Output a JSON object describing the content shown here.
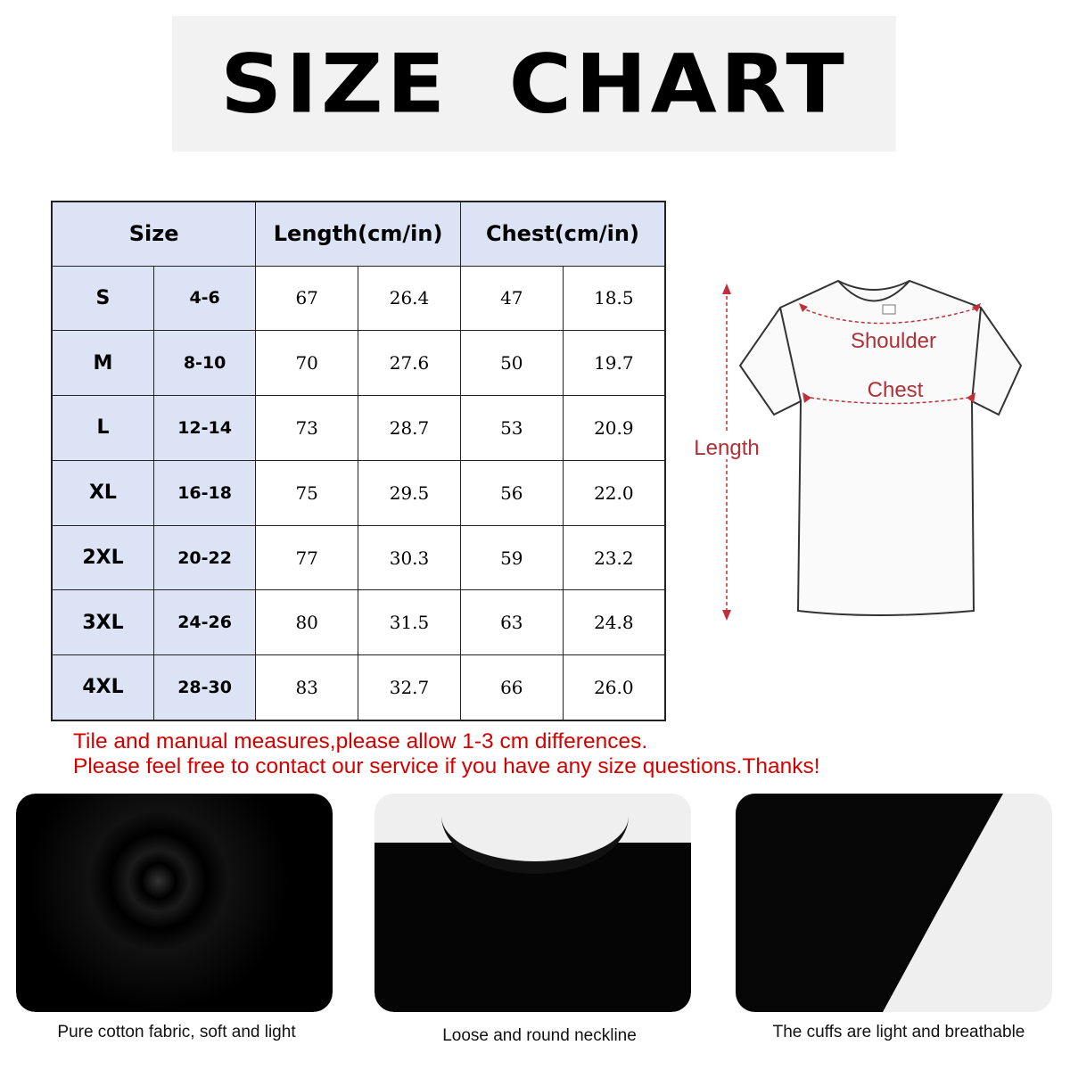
{
  "title": "SIZE CHART",
  "table": {
    "headers": [
      "Size",
      "Length(cm/in)",
      "Chest(cm/in)"
    ],
    "rows": [
      [
        "S",
        "4-6",
        "67",
        "26.4",
        "47",
        "18.5"
      ],
      [
        "M",
        "8-10",
        "70",
        "27.6",
        "50",
        "19.7"
      ],
      [
        "L",
        "12-14",
        "73",
        "28.7",
        "53",
        "20.9"
      ],
      [
        "XL",
        "16-18",
        "75",
        "29.5",
        "56",
        "22.0"
      ],
      [
        "2XL",
        "20-22",
        "77",
        "30.3",
        "59",
        "23.2"
      ],
      [
        "3XL",
        "24-26",
        "80",
        "31.5",
        "63",
        "24.8"
      ],
      [
        "4XL",
        "28-30",
        "83",
        "32.7",
        "66",
        "26.0"
      ]
    ]
  },
  "diagram": {
    "shoulder": "Shoulder",
    "chest": "Chest",
    "length": "Length"
  },
  "notes": [
    "Tile and manual measures,please allow 1-3 cm differences.",
    "Please feel free to contact our service if you have any size questions.Thanks!"
  ],
  "photos": [
    {
      "caption": "Pure cotton fabric, soft and light"
    },
    {
      "caption": "Loose and round neckline"
    },
    {
      "caption": "The cuffs are light and breathable"
    }
  ],
  "colors": {
    "header_bg": "#dbe3f5",
    "note": "#d40000",
    "measure": "#c0303a"
  }
}
